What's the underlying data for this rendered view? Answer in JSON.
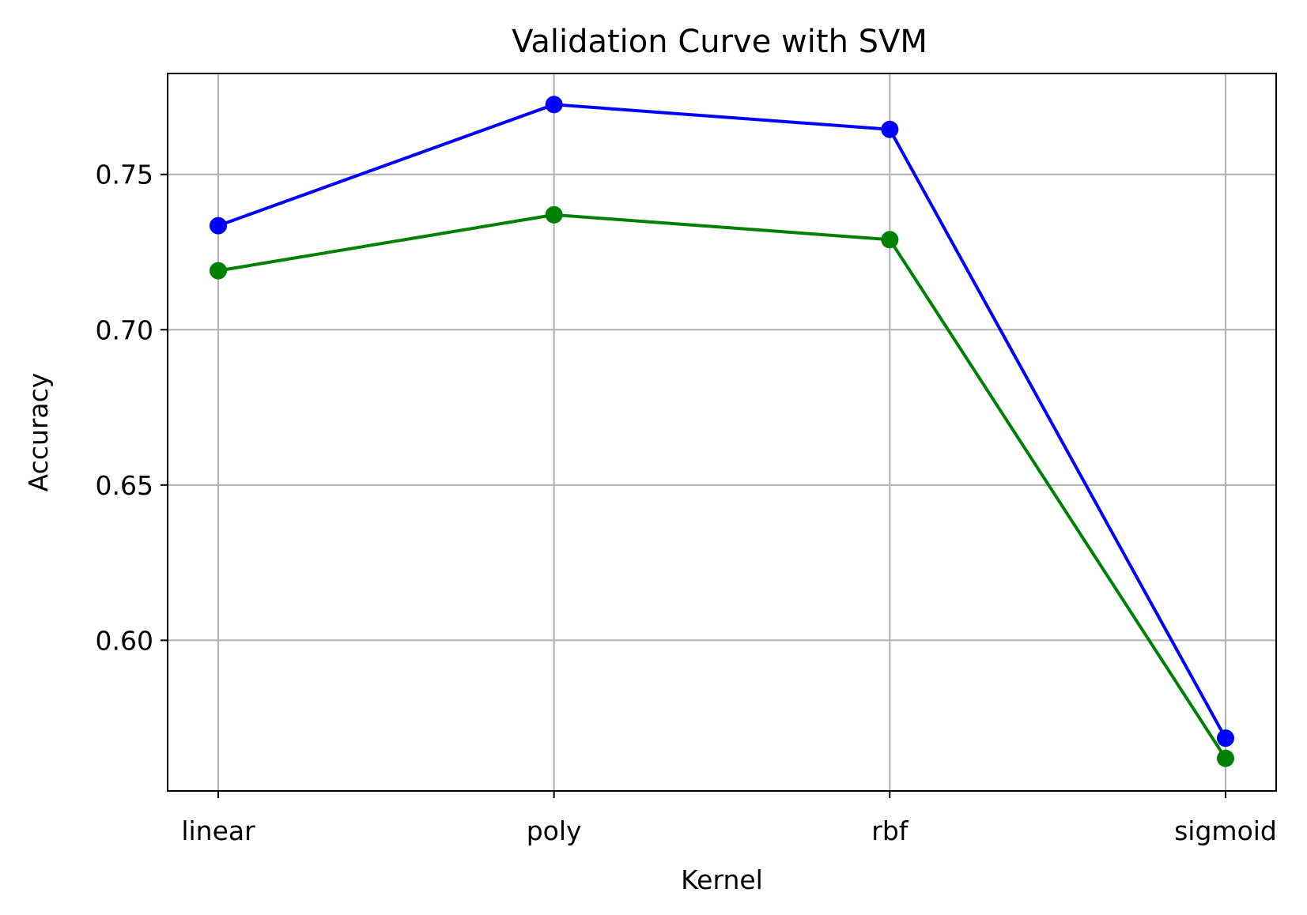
{
  "chart_data": {
    "type": "line",
    "title": "Validation Curve with SVM",
    "xlabel": "Kernel",
    "ylabel": "Accuracy",
    "categories": [
      "linear",
      "poly",
      "rbf",
      "sigmoid"
    ],
    "series": [
      {
        "color": "#0000ff",
        "marker": "circle",
        "values": [
          0.7335,
          0.7725,
          0.7645,
          0.5685
        ]
      },
      {
        "color": "#008000",
        "marker": "circle",
        "values": [
          0.719,
          0.737,
          0.729,
          0.562
        ]
      }
    ],
    "ylim": [
      0.5515,
      0.7825
    ],
    "yticks": [
      0.6,
      0.65,
      0.7,
      0.75
    ],
    "ytick_labels": [
      "0.60",
      "0.65",
      "0.70",
      "0.75"
    ],
    "grid": true,
    "legend": "none"
  }
}
